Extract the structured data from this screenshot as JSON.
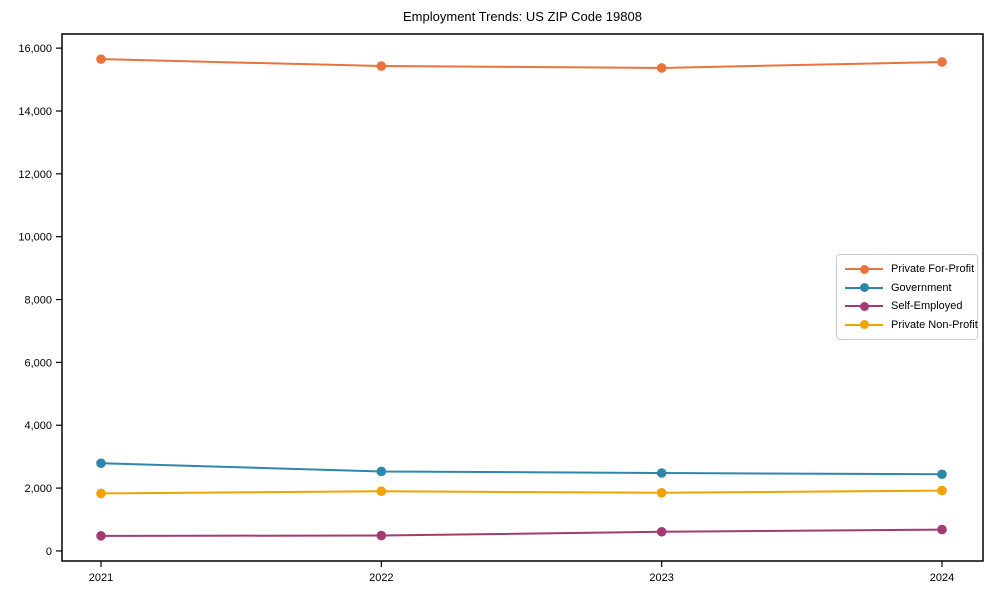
{
  "figure": {
    "background": "#ffffff",
    "spine_color": "#000000",
    "text_color": "#000000"
  },
  "chart_data": {
    "type": "line",
    "title": "Employment Trends: US ZIP Code 19808",
    "categories": [
      "2021",
      "2022",
      "2023",
      "2024"
    ],
    "series": [
      {
        "name": "Private For-Profit",
        "color": "#E8743B",
        "values": [
          15650,
          15430,
          15370,
          15560
        ]
      },
      {
        "name": "Government",
        "color": "#2E86AB",
        "values": [
          2790,
          2530,
          2480,
          2440
        ]
      },
      {
        "name": "Self-Employed",
        "color": "#A23B72",
        "values": [
          480,
          490,
          610,
          680
        ]
      },
      {
        "name": "Private Non-Profit",
        "color": "#F0A202",
        "values": [
          1830,
          1900,
          1850,
          1920
        ]
      }
    ],
    "xlabel": "",
    "ylabel": "",
    "ylim": [
      0,
      16000
    ],
    "yticks": [
      0,
      2000,
      4000,
      6000,
      8000,
      10000,
      12000,
      14000,
      16000
    ],
    "grid": false,
    "marker": "o",
    "legend_position": "center-right"
  }
}
